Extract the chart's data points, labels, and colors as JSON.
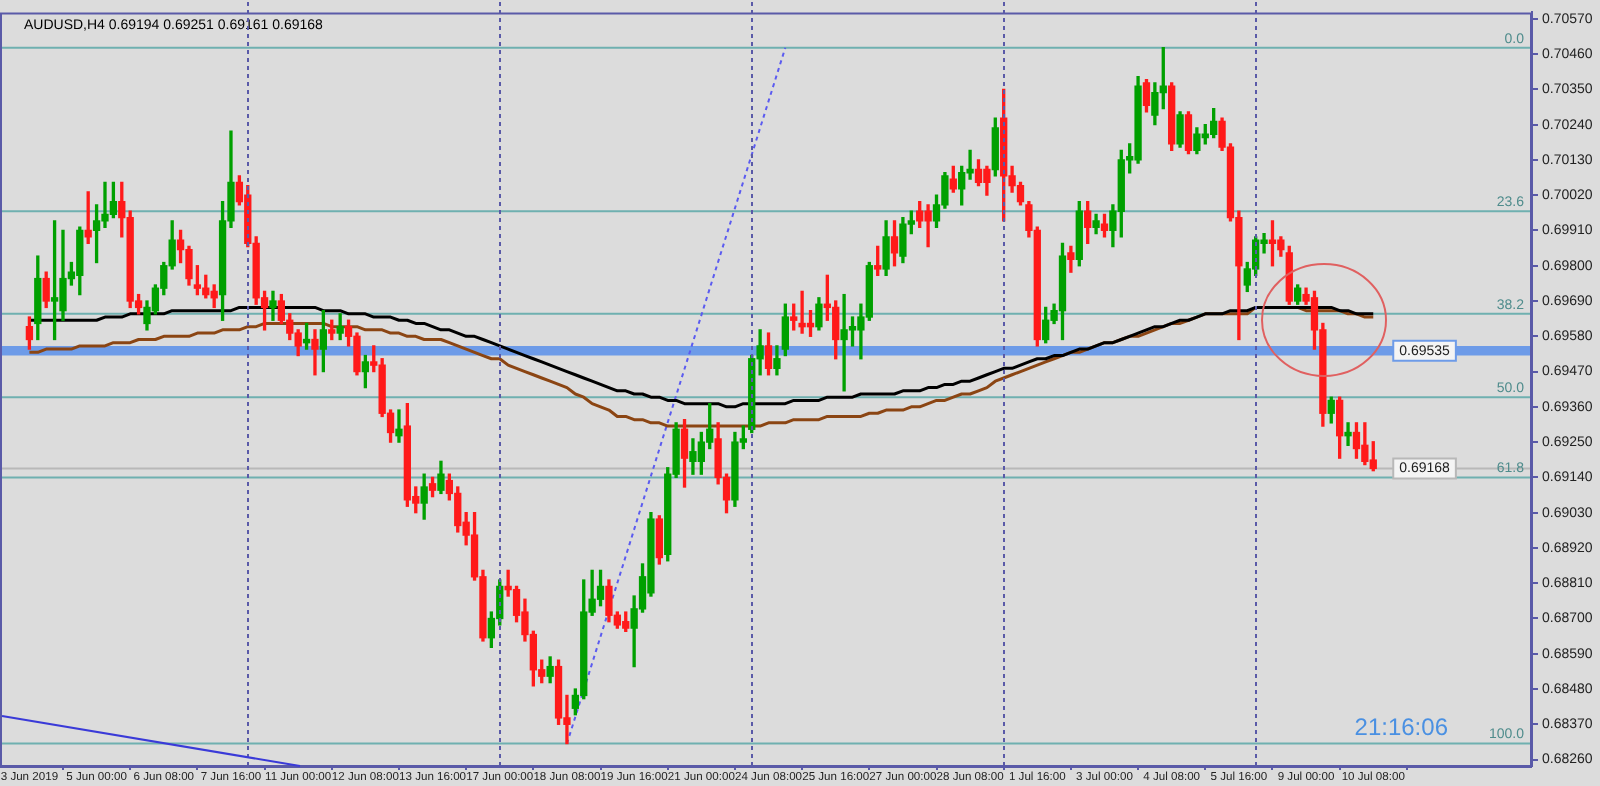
{
  "chart_data": {
    "type": "candlestick",
    "title": "AUDUSD,H4 0.69194 0.69251 0.69161 0.69168",
    "categories": [
      "3 Jun 2019",
      null,
      null,
      null,
      null,
      null,
      null,
      null,
      "5 Jun 00:00",
      null,
      null,
      null,
      null,
      null,
      null,
      null,
      "6 Jun 08:00",
      null,
      null,
      null,
      null,
      null,
      null,
      null,
      "7 Jun 16:00",
      null,
      null,
      null,
      null,
      null,
      null,
      null,
      "11 Jun 00:00",
      null,
      null,
      null,
      null,
      null,
      null,
      null,
      "12 Jun 08:00",
      null,
      null,
      null,
      null,
      null,
      null,
      null,
      "13 Jun 16:00",
      null,
      null,
      null,
      null,
      null,
      null,
      null,
      "17 Jun 00:00",
      null,
      null,
      null,
      null,
      null,
      null,
      null,
      "18 Jun 08:00",
      null,
      null,
      null,
      null,
      null,
      null,
      null,
      "19 Jun 16:00",
      null,
      null,
      null,
      null,
      null,
      null,
      null,
      "21 Jun 00:00",
      null,
      null,
      null,
      null,
      null,
      null,
      null,
      "24 Jun 08:00",
      null,
      null,
      null,
      null,
      null,
      null,
      null,
      "25 Jun 16:00",
      null,
      null,
      null,
      null,
      null,
      null,
      null,
      "27 Jun 00:00",
      null,
      null,
      null,
      null,
      null,
      null,
      null,
      "28 Jun 08:00",
      null,
      null,
      null,
      null,
      null,
      null,
      null,
      "1 Jul 16:00",
      null,
      null,
      null,
      null,
      null,
      null,
      null,
      "3 Jul 00:00",
      null,
      null,
      null,
      null,
      null,
      null,
      null,
      "4 Jul 08:00",
      null,
      null,
      null,
      null,
      null,
      null,
      null,
      "5 Jul 16:00",
      null,
      null,
      null,
      null,
      null,
      null,
      null,
      "9 Jul 00:00",
      null,
      null,
      null,
      null,
      null,
      null,
      null,
      "10 Jul 08:00"
    ],
    "ohlc": [
      [
        0.6961,
        0.6964,
        0.6954,
        0.6957
      ],
      [
        0.6962,
        0.6983,
        0.6957,
        0.6976
      ],
      [
        0.6976,
        0.6978,
        0.6967,
        0.6969
      ],
      [
        0.6969,
        0.6994,
        0.6957,
        0.697
      ],
      [
        0.6966,
        0.6991,
        0.6963,
        0.6976
      ],
      [
        0.6976,
        0.6981,
        0.6974,
        0.6978
      ],
      [
        0.6977,
        0.6992,
        0.6971,
        0.6991
      ],
      [
        0.6991,
        0.7003,
        0.6987,
        0.6989
      ],
      [
        0.6991,
        0.6999,
        0.6981,
        0.6994
      ],
      [
        0.6994,
        0.7006,
        0.6992,
        0.6996
      ],
      [
        0.6996,
        0.7006,
        0.6995,
        0.7
      ],
      [
        0.7,
        0.7006,
        0.6989,
        0.6995
      ],
      [
        0.6995,
        0.6997,
        0.6967,
        0.6969
      ],
      [
        0.6969,
        0.6971,
        0.6965,
        0.6967
      ],
      [
        0.6962,
        0.6969,
        0.696,
        0.6967
      ],
      [
        0.6966,
        0.6974,
        0.6965,
        0.6973
      ],
      [
        0.6973,
        0.6981,
        0.6971,
        0.698
      ],
      [
        0.698,
        0.6994,
        0.6979,
        0.6988
      ],
      [
        0.6988,
        0.6991,
        0.6981,
        0.6985
      ],
      [
        0.6985,
        0.6986,
        0.6974,
        0.6976
      ],
      [
        0.6974,
        0.698,
        0.6971,
        0.6973
      ],
      [
        0.6973,
        0.6977,
        0.697,
        0.6971
      ],
      [
        0.6972,
        0.6974,
        0.6967,
        0.697
      ],
      [
        0.6971,
        0.7,
        0.6963,
        0.6994
      ],
      [
        0.6994,
        0.7022,
        0.6992,
        0.7006
      ],
      [
        0.7006,
        0.7008,
        0.6999,
        0.7
      ],
      [
        0.7002,
        0.7005,
        0.6986,
        0.6987
      ],
      [
        0.6987,
        0.6989,
        0.6968,
        0.697
      ],
      [
        0.697,
        0.6972,
        0.696,
        0.6967
      ],
      [
        0.6967,
        0.6972,
        0.6963,
        0.6969
      ],
      [
        0.6969,
        0.6971,
        0.6962,
        0.6963
      ],
      [
        0.6963,
        0.6965,
        0.6957,
        0.6959
      ],
      [
        0.6959,
        0.696,
        0.6952,
        0.6955
      ],
      [
        0.6956,
        0.6962,
        0.6954,
        0.6957
      ],
      [
        0.6957,
        0.696,
        0.6946,
        0.6954
      ],
      [
        0.6954,
        0.6966,
        0.6947,
        0.696
      ],
      [
        0.696,
        0.6963,
        0.6957,
        0.6959
      ],
      [
        0.6959,
        0.6965,
        0.6957,
        0.6961
      ],
      [
        0.6961,
        0.6963,
        0.6955,
        0.6958
      ],
      [
        0.6958,
        0.6959,
        0.6946,
        0.6947
      ],
      [
        0.6947,
        0.6952,
        0.6942,
        0.695
      ],
      [
        0.695,
        0.6955,
        0.6947,
        0.6949
      ],
      [
        0.6949,
        0.6951,
        0.6933,
        0.6934
      ],
      [
        0.6934,
        0.6935,
        0.6925,
        0.6928
      ],
      [
        0.6927,
        0.6935,
        0.6925,
        0.6929
      ],
      [
        0.693,
        0.6937,
        0.6905,
        0.6907
      ],
      [
        0.6908,
        0.6911,
        0.6903,
        0.6906
      ],
      [
        0.6906,
        0.6915,
        0.6901,
        0.6911
      ],
      [
        0.6912,
        0.6914,
        0.6908,
        0.691
      ],
      [
        0.691,
        0.6919,
        0.6909,
        0.6915
      ],
      [
        0.6913,
        0.6915,
        0.6907,
        0.6909
      ],
      [
        0.6909,
        0.6911,
        0.6897,
        0.6899
      ],
      [
        0.69,
        0.6903,
        0.6893,
        0.6896
      ],
      [
        0.6896,
        0.6903,
        0.6882,
        0.6883
      ],
      [
        0.6883,
        0.6885,
        0.6863,
        0.6864
      ],
      [
        0.6864,
        0.6872,
        0.6861,
        0.687
      ],
      [
        0.687,
        0.6882,
        0.6868,
        0.688
      ],
      [
        0.688,
        0.6885,
        0.6877,
        0.6879
      ],
      [
        0.6879,
        0.688,
        0.6869,
        0.6871
      ],
      [
        0.6872,
        0.6876,
        0.6863,
        0.6865
      ],
      [
        0.6865,
        0.6866,
        0.6849,
        0.6854
      ],
      [
        0.6854,
        0.6857,
        0.685,
        0.6852
      ],
      [
        0.6852,
        0.6858,
        0.685,
        0.6855
      ],
      [
        0.6855,
        0.6857,
        0.6837,
        0.6839
      ],
      [
        0.6839,
        0.6846,
        0.6831,
        0.6837
      ],
      [
        0.6842,
        0.6848,
        0.684,
        0.6846
      ],
      [
        0.6846,
        0.6882,
        0.6845,
        0.6872
      ],
      [
        0.6872,
        0.6885,
        0.6871,
        0.6876
      ],
      [
        0.6876,
        0.6885,
        0.6874,
        0.688
      ],
      [
        0.688,
        0.6882,
        0.6869,
        0.6871
      ],
      [
        0.6871,
        0.6872,
        0.6867,
        0.6868
      ],
      [
        0.6869,
        0.6872,
        0.6866,
        0.6867
      ],
      [
        0.6867,
        0.6877,
        0.6855,
        0.6873
      ],
      [
        0.6873,
        0.6887,
        0.6872,
        0.6883
      ],
      [
        0.6878,
        0.6903,
        0.6877,
        0.6901
      ],
      [
        0.6901,
        0.6902,
        0.6887,
        0.6889
      ],
      [
        0.689,
        0.6917,
        0.6888,
        0.6915
      ],
      [
        0.6915,
        0.6931,
        0.6914,
        0.6929
      ],
      [
        0.6929,
        0.6932,
        0.6911,
        0.692
      ],
      [
        0.6919,
        0.6926,
        0.6915,
        0.6922
      ],
      [
        0.6919,
        0.6928,
        0.6915,
        0.6925
      ],
      [
        0.6925,
        0.6937,
        0.6923,
        0.6929
      ],
      [
        0.6926,
        0.6931,
        0.6912,
        0.6914
      ],
      [
        0.6914,
        0.6915,
        0.6903,
        0.6907
      ],
      [
        0.6907,
        0.6928,
        0.6905,
        0.6925
      ],
      [
        0.6925,
        0.693,
        0.6923,
        0.6926
      ],
      [
        0.6929,
        0.6952,
        0.6928,
        0.6951
      ],
      [
        0.6951,
        0.696,
        0.6946,
        0.6955
      ],
      [
        0.6955,
        0.6959,
        0.6946,
        0.6948
      ],
      [
        0.6948,
        0.6955,
        0.6946,
        0.6951
      ],
      [
        0.6954,
        0.6968,
        0.6952,
        0.6964
      ],
      [
        0.6964,
        0.6968,
        0.696,
        0.6963
      ],
      [
        0.6962,
        0.6972,
        0.6959,
        0.6961
      ],
      [
        0.6962,
        0.6966,
        0.6958,
        0.6961
      ],
      [
        0.6961,
        0.697,
        0.696,
        0.6968
      ],
      [
        0.6968,
        0.6977,
        0.6963,
        0.6967
      ],
      [
        0.6967,
        0.6969,
        0.6951,
        0.6957
      ],
      [
        0.6957,
        0.6971,
        0.6941,
        0.696
      ],
      [
        0.696,
        0.6964,
        0.6955,
        0.6961
      ],
      [
        0.696,
        0.6968,
        0.6951,
        0.6964
      ],
      [
        0.6964,
        0.6981,
        0.6963,
        0.698
      ],
      [
        0.698,
        0.6986,
        0.6977,
        0.6979
      ],
      [
        0.6979,
        0.6994,
        0.6977,
        0.6989
      ],
      [
        0.6989,
        0.6994,
        0.698,
        0.6984
      ],
      [
        0.6983,
        0.6995,
        0.6981,
        0.6993
      ],
      [
        0.6993,
        0.6997,
        0.699,
        0.6994
      ],
      [
        0.6997,
        0.7,
        0.6992,
        0.6994
      ],
      [
        0.6997,
        0.6999,
        0.6986,
        0.6994
      ],
      [
        0.6994,
        0.7002,
        0.6992,
        0.6999
      ],
      [
        0.6999,
        0.7009,
        0.6998,
        0.7008
      ],
      [
        0.7007,
        0.7011,
        0.7003,
        0.7004
      ],
      [
        0.7004,
        0.7011,
        0.6999,
        0.7009
      ],
      [
        0.7009,
        0.7016,
        0.7007,
        0.701
      ],
      [
        0.701,
        0.7013,
        0.7005,
        0.7006
      ],
      [
        0.701,
        0.7011,
        0.7002,
        0.7006
      ],
      [
        0.701,
        0.7026,
        0.7008,
        0.7023
      ],
      [
        0.7026,
        0.7035,
        0.6994,
        0.7008
      ],
      [
        0.7008,
        0.7011,
        0.7003,
        0.7005
      ],
      [
        0.7005,
        0.7006,
        0.6999,
        0.7
      ],
      [
        0.6999,
        0.7,
        0.6989,
        0.6991
      ],
      [
        0.6991,
        0.6992,
        0.6955,
        0.6957
      ],
      [
        0.6957,
        0.6967,
        0.6956,
        0.6963
      ],
      [
        0.6963,
        0.6968,
        0.6962,
        0.6966
      ],
      [
        0.6966,
        0.6987,
        0.6957,
        0.6983
      ],
      [
        0.6984,
        0.6986,
        0.6978,
        0.6982
      ],
      [
        0.6982,
        0.7,
        0.698,
        0.6997
      ],
      [
        0.6997,
        0.7,
        0.6987,
        0.6992
      ],
      [
        0.6992,
        0.6996,
        0.699,
        0.6994
      ],
      [
        0.6993,
        0.6996,
        0.6989,
        0.6991
      ],
      [
        0.6991,
        0.6999,
        0.6986,
        0.6997
      ],
      [
        0.6997,
        0.7016,
        0.6989,
        0.7013
      ],
      [
        0.7013,
        0.7018,
        0.7009,
        0.7014
      ],
      [
        0.7013,
        0.7039,
        0.7012,
        0.7036
      ],
      [
        0.7037,
        0.7038,
        0.7028,
        0.703
      ],
      [
        0.7027,
        0.7037,
        0.7024,
        0.7034
      ],
      [
        0.7034,
        0.7048,
        0.7029,
        0.7036
      ],
      [
        0.7036,
        0.7037,
        0.7016,
        0.7018
      ],
      [
        0.7018,
        0.7028,
        0.7017,
        0.7027
      ],
      [
        0.7027,
        0.7028,
        0.7015,
        0.7016
      ],
      [
        0.7016,
        0.7023,
        0.7015,
        0.7021
      ],
      [
        0.702,
        0.7024,
        0.7018,
        0.7021
      ],
      [
        0.7021,
        0.7029,
        0.702,
        0.7025
      ],
      [
        0.7025,
        0.7026,
        0.7016,
        0.7017
      ],
      [
        0.7017,
        0.7018,
        0.6994,
        0.6995
      ],
      [
        0.6995,
        0.6997,
        0.6957,
        0.698
      ],
      [
        0.6974,
        0.6981,
        0.6972,
        0.6979
      ],
      [
        0.6979,
        0.6989,
        0.6977,
        0.6988
      ],
      [
        0.6987,
        0.699,
        0.6984,
        0.6988
      ],
      [
        0.6988,
        0.6994,
        0.698,
        0.6987
      ],
      [
        0.6988,
        0.6989,
        0.6983,
        0.6985
      ],
      [
        0.6984,
        0.6986,
        0.6968,
        0.6969
      ],
      [
        0.6969,
        0.6974,
        0.6968,
        0.6973
      ],
      [
        0.6971,
        0.6973,
        0.6968,
        0.6969
      ],
      [
        0.697,
        0.6972,
        0.6954,
        0.696
      ],
      [
        0.696,
        0.6962,
        0.693,
        0.6934
      ],
      [
        0.6934,
        0.6939,
        0.6931,
        0.6938
      ],
      [
        0.6938,
        0.6939,
        0.692,
        0.6927
      ],
      [
        0.6927,
        0.6931,
        0.6924,
        0.6928
      ],
      [
        0.6928,
        0.6931,
        0.692,
        0.6923
      ],
      [
        0.6924,
        0.6931,
        0.6918,
        0.6919
      ],
      [
        0.69194,
        0.69251,
        0.69161,
        0.69168
      ]
    ],
    "series": [
      {
        "type": "line",
        "color": "#000000",
        "values": [
          0.6963,
          0.6963,
          0.6963,
          0.6963,
          0.6963,
          0.6963,
          0.6963,
          0.6963,
          0.6963,
          0.6964,
          0.6964,
          0.6964,
          0.6965,
          0.6965,
          0.6965,
          0.6965,
          0.6965,
          0.6966,
          0.6966,
          0.6966,
          0.6966,
          0.6966,
          0.6966,
          0.6966,
          0.6966,
          0.6967,
          0.6967,
          0.6967,
          0.6967,
          0.6967,
          0.6967,
          0.6967,
          0.6967,
          0.6967,
          0.6967,
          0.6966,
          0.6966,
          0.6966,
          0.6965,
          0.6965,
          0.6965,
          0.6964,
          0.6964,
          0.6964,
          0.6963,
          0.6963,
          0.6962,
          0.6962,
          0.6961,
          0.696,
          0.696,
          0.6959,
          0.6958,
          0.6958,
          0.6957,
          0.6956,
          0.6955,
          0.6954,
          0.6953,
          0.6952,
          0.6951,
          0.695,
          0.6949,
          0.6948,
          0.6947,
          0.6946,
          0.6945,
          0.6944,
          0.6943,
          0.6942,
          0.6941,
          0.6941,
          0.694,
          0.694,
          0.6939,
          0.6939,
          0.6938,
          0.6938,
          0.6937,
          0.6937,
          0.6937,
          0.6937,
          0.6937,
          0.6936,
          0.6936,
          0.6937,
          0.6937,
          0.6937,
          0.6937,
          0.6937,
          0.6937,
          0.6938,
          0.6938,
          0.6938,
          0.6938,
          0.6939,
          0.6939,
          0.6939,
          0.6939,
          0.694,
          0.694,
          0.694,
          0.694,
          0.694,
          0.6941,
          0.6941,
          0.6941,
          0.6942,
          0.6942,
          0.6943,
          0.6943,
          0.6944,
          0.6944,
          0.6945,
          0.6946,
          0.6947,
          0.6948,
          0.6948,
          0.6949,
          0.695,
          0.6951,
          0.6951,
          0.6952,
          0.6952,
          0.6953,
          0.6954,
          0.6954,
          0.6955,
          0.6956,
          0.6956,
          0.6957,
          0.6958,
          0.6959,
          0.696,
          0.6961,
          0.6961,
          0.6962,
          0.6963,
          0.6963,
          0.6964,
          0.6965,
          0.6965,
          0.6965,
          0.6966,
          0.6966,
          0.6966,
          0.6967,
          0.6967,
          0.6967,
          0.6967,
          0.6967,
          0.6967,
          0.6967,
          0.6967,
          0.6967,
          0.6967,
          0.6966,
          0.6966,
          0.6965,
          0.6965,
          0.6965
        ]
      },
      {
        "type": "line",
        "color": "#8b4513",
        "values": [
          0.6953,
          0.6953,
          0.6954,
          0.6954,
          0.6954,
          0.6954,
          0.6955,
          0.6955,
          0.6955,
          0.6955,
          0.6956,
          0.6956,
          0.6956,
          0.6957,
          0.6957,
          0.6957,
          0.6958,
          0.6958,
          0.6958,
          0.6958,
          0.6959,
          0.6959,
          0.6959,
          0.696,
          0.696,
          0.696,
          0.6961,
          0.6961,
          0.6962,
          0.6962,
          0.6962,
          0.6962,
          0.6962,
          0.6962,
          0.6962,
          0.6962,
          0.6961,
          0.6961,
          0.6961,
          0.6961,
          0.696,
          0.696,
          0.696,
          0.6959,
          0.6959,
          0.6958,
          0.6958,
          0.6957,
          0.6957,
          0.6957,
          0.6956,
          0.6955,
          0.6954,
          0.6953,
          0.6952,
          0.6951,
          0.6951,
          0.6949,
          0.6948,
          0.6947,
          0.6946,
          0.6945,
          0.6944,
          0.6943,
          0.6942,
          0.694,
          0.6939,
          0.6937,
          0.6936,
          0.6935,
          0.6933,
          0.6933,
          0.6932,
          0.6932,
          0.6931,
          0.6931,
          0.693,
          0.693,
          0.693,
          0.693,
          0.693,
          0.693,
          0.693,
          0.693,
          0.693,
          0.693,
          0.693,
          0.693,
          0.6931,
          0.6931,
          0.6931,
          0.6932,
          0.6932,
          0.6932,
          0.6932,
          0.6933,
          0.6933,
          0.6933,
          0.6933,
          0.6933,
          0.6934,
          0.6934,
          0.6935,
          0.6935,
          0.6935,
          0.6936,
          0.6936,
          0.6937,
          0.6938,
          0.6938,
          0.6939,
          0.694,
          0.694,
          0.6941,
          0.6942,
          0.6944,
          0.6945,
          0.6946,
          0.6947,
          0.6948,
          0.6949,
          0.695,
          0.6951,
          0.6952,
          0.6953,
          0.6953,
          0.6954,
          0.6955,
          0.6956,
          0.6956,
          0.6957,
          0.6958,
          0.6958,
          0.6959,
          0.696,
          0.6961,
          0.6962,
          0.6962,
          0.6963,
          0.6964,
          0.6965,
          0.6965,
          0.6965,
          0.6965,
          0.6965,
          0.6965,
          0.6967,
          0.6967,
          0.6967,
          0.6967,
          0.6967,
          0.6967,
          0.6966,
          0.6966,
          0.6966,
          0.6966,
          0.6966,
          0.6965,
          0.6965,
          0.6964,
          0.6964
        ]
      },
      {
        "type": "line",
        "color": "#5b5bf0",
        "line_style": "dotted",
        "values": [
          null,
          null,
          null,
          null,
          null,
          null,
          null,
          null,
          null,
          null,
          null,
          null,
          null,
          null,
          null,
          null,
          null,
          null,
          null,
          null,
          null,
          null,
          null,
          null,
          null,
          null,
          null,
          null,
          null,
          null,
          null,
          null,
          null,
          null,
          null,
          null,
          null,
          null,
          null,
          null,
          null,
          null,
          null,
          null,
          null,
          null,
          null,
          null,
          null,
          null,
          null,
          null,
          null,
          null,
          null,
          null,
          null,
          null,
          null,
          null,
          null,
          null,
          null,
          null,
          0.6831,
          null,
          null,
          null,
          null,
          null,
          null,
          null,
          null,
          null,
          null,
          null,
          null,
          null,
          null,
          null,
          null,
          null,
          null,
          null,
          null,
          null,
          null,
          null,
          null,
          null,
          0.7048,
          null,
          null,
          null,
          null,
          null,
          null,
          null,
          null,
          null,
          null,
          null,
          null,
          null,
          null,
          null,
          null,
          null,
          null,
          null,
          null,
          null,
          null,
          null,
          null,
          null,
          null,
          null,
          null,
          null,
          null,
          null,
          null,
          null,
          null,
          null,
          null,
          null,
          null,
          null,
          null,
          null,
          null,
          null,
          null,
          null,
          null,
          null,
          null,
          null,
          null,
          null,
          null,
          null,
          null,
          null,
          null,
          null,
          null,
          null,
          null,
          null,
          null,
          null,
          null,
          null,
          null,
          null,
          null,
          null,
          null
        ]
      }
    ],
    "ylim": [
      0.6824,
      0.7059
    ],
    "yticks": [
      {
        "value": 0.7057,
        "label": "0.70570"
      },
      {
        "value": 0.7046,
        "label": "0.70460"
      },
      {
        "value": 0.7035,
        "label": "0.70350"
      },
      {
        "value": 0.7024,
        "label": "0.70240"
      },
      {
        "value": 0.7013,
        "label": "0.70130"
      },
      {
        "value": 0.7002,
        "label": "0.70020"
      },
      {
        "value": 0.6991,
        "label": "0.69910"
      },
      {
        "value": 0.698,
        "label": "0.69800"
      },
      {
        "value": 0.6969,
        "label": "0.69690"
      },
      {
        "value": 0.6958,
        "label": "0.69580"
      },
      {
        "value": 0.6947,
        "label": "0.69470"
      },
      {
        "value": 0.6936,
        "label": "0.69360"
      },
      {
        "value": 0.6925,
        "label": "0.69250"
      },
      {
        "value": 0.6914,
        "label": "0.69140"
      },
      {
        "value": 0.6903,
        "label": "0.69030"
      },
      {
        "value": 0.6892,
        "label": "0.68920"
      },
      {
        "value": 0.6881,
        "label": "0.68810"
      },
      {
        "value": 0.687,
        "label": "0.68700"
      },
      {
        "value": 0.6859,
        "label": "0.68590"
      },
      {
        "value": 0.6848,
        "label": "0.68480"
      },
      {
        "value": 0.6837,
        "label": "0.68370"
      },
      {
        "value": 0.6826,
        "label": "0.68260"
      }
    ],
    "ref_lines": [
      {
        "axis": "y",
        "value": 0.7048,
        "color": "#6fb0b0"
      },
      {
        "axis": "y",
        "value": 0.6997,
        "color": "#6fb0b0"
      },
      {
        "axis": "y",
        "value": 0.6965,
        "color": "#6fb0b0"
      },
      {
        "axis": "y",
        "value": 0.6939,
        "color": "#6fb0b0"
      },
      {
        "axis": "y",
        "value": 0.6914,
        "color": "#6fb0b0"
      },
      {
        "axis": "y",
        "value": 0.6831,
        "color": "#6fb0b0"
      },
      {
        "axis": "y",
        "value": 0.69168,
        "label": "0.69168",
        "color": "#b8b8b8"
      }
    ],
    "bands": [
      {
        "axis": "y",
        "from": 0.6952,
        "to": 0.6955,
        "label": "0.69535",
        "color": "#6d9be8"
      }
    ],
    "annotations": [
      "21:16:06",
      {
        "text": "0.0",
        "y": 0.7048
      },
      {
        "text": "23.6",
        "y": 0.6997
      },
      {
        "text": "38.2",
        "y": 0.6965
      },
      {
        "text": "50.0",
        "y": 0.6939
      },
      {
        "text": "61.8",
        "y": 0.6914
      },
      {
        "text": "100.0",
        "y": 0.6831
      }
    ],
    "marker": "none"
  }
}
